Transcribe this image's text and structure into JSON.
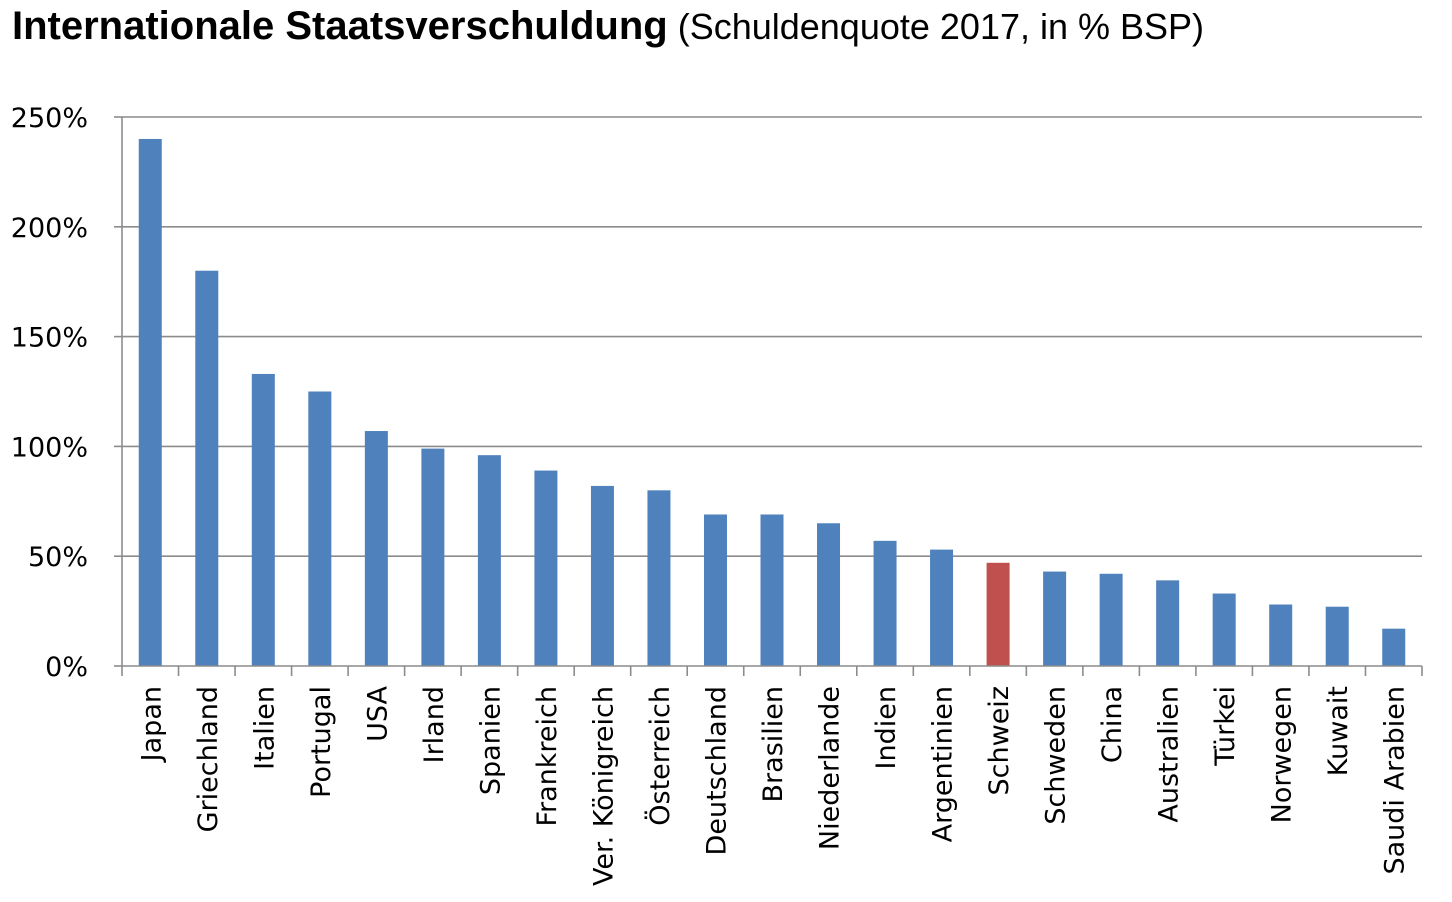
{
  "title": {
    "main": "Internationale Staatsverschuldung",
    "sub": "(Schuldenquote 2017, in % BSP)"
  },
  "colors": {
    "bar": "#4f81bd",
    "highlight": "#c0504d",
    "grid": "#8c8c8c",
    "axis": "#8c8c8c"
  },
  "chart_data": {
    "type": "bar",
    "title": "Internationale Staatsverschuldung",
    "subtitle": "(Schuldenquote 2017, in % BSP)",
    "xlabel": "",
    "ylabel": "",
    "ylim": [
      0,
      250
    ],
    "yticks": [
      0,
      50,
      100,
      150,
      200,
      250
    ],
    "ytick_labels": [
      "0%",
      "50%",
      "100%",
      "150%",
      "200%",
      "250%"
    ],
    "grid": true,
    "legend": "none",
    "highlight_category": "Schweiz",
    "categories": [
      "Japan",
      "Griechland",
      "Italien",
      "Portugal",
      "USA",
      "Irland",
      "Spanien",
      "Frankreich",
      "Ver. Königreich",
      "Österreich",
      "Deutschland",
      "Brasilien",
      "Niederlande",
      "Indien",
      "Argentinien",
      "Schweiz",
      "Schweden",
      "China",
      "Australien",
      "Türkei",
      "Norwegen",
      "Kuwait",
      "Saudi Arabien"
    ],
    "values": [
      240,
      180,
      133,
      125,
      107,
      99,
      96,
      89,
      82,
      80,
      69,
      69,
      65,
      57,
      53,
      47,
      43,
      42,
      39,
      33,
      28,
      27,
      17
    ]
  }
}
